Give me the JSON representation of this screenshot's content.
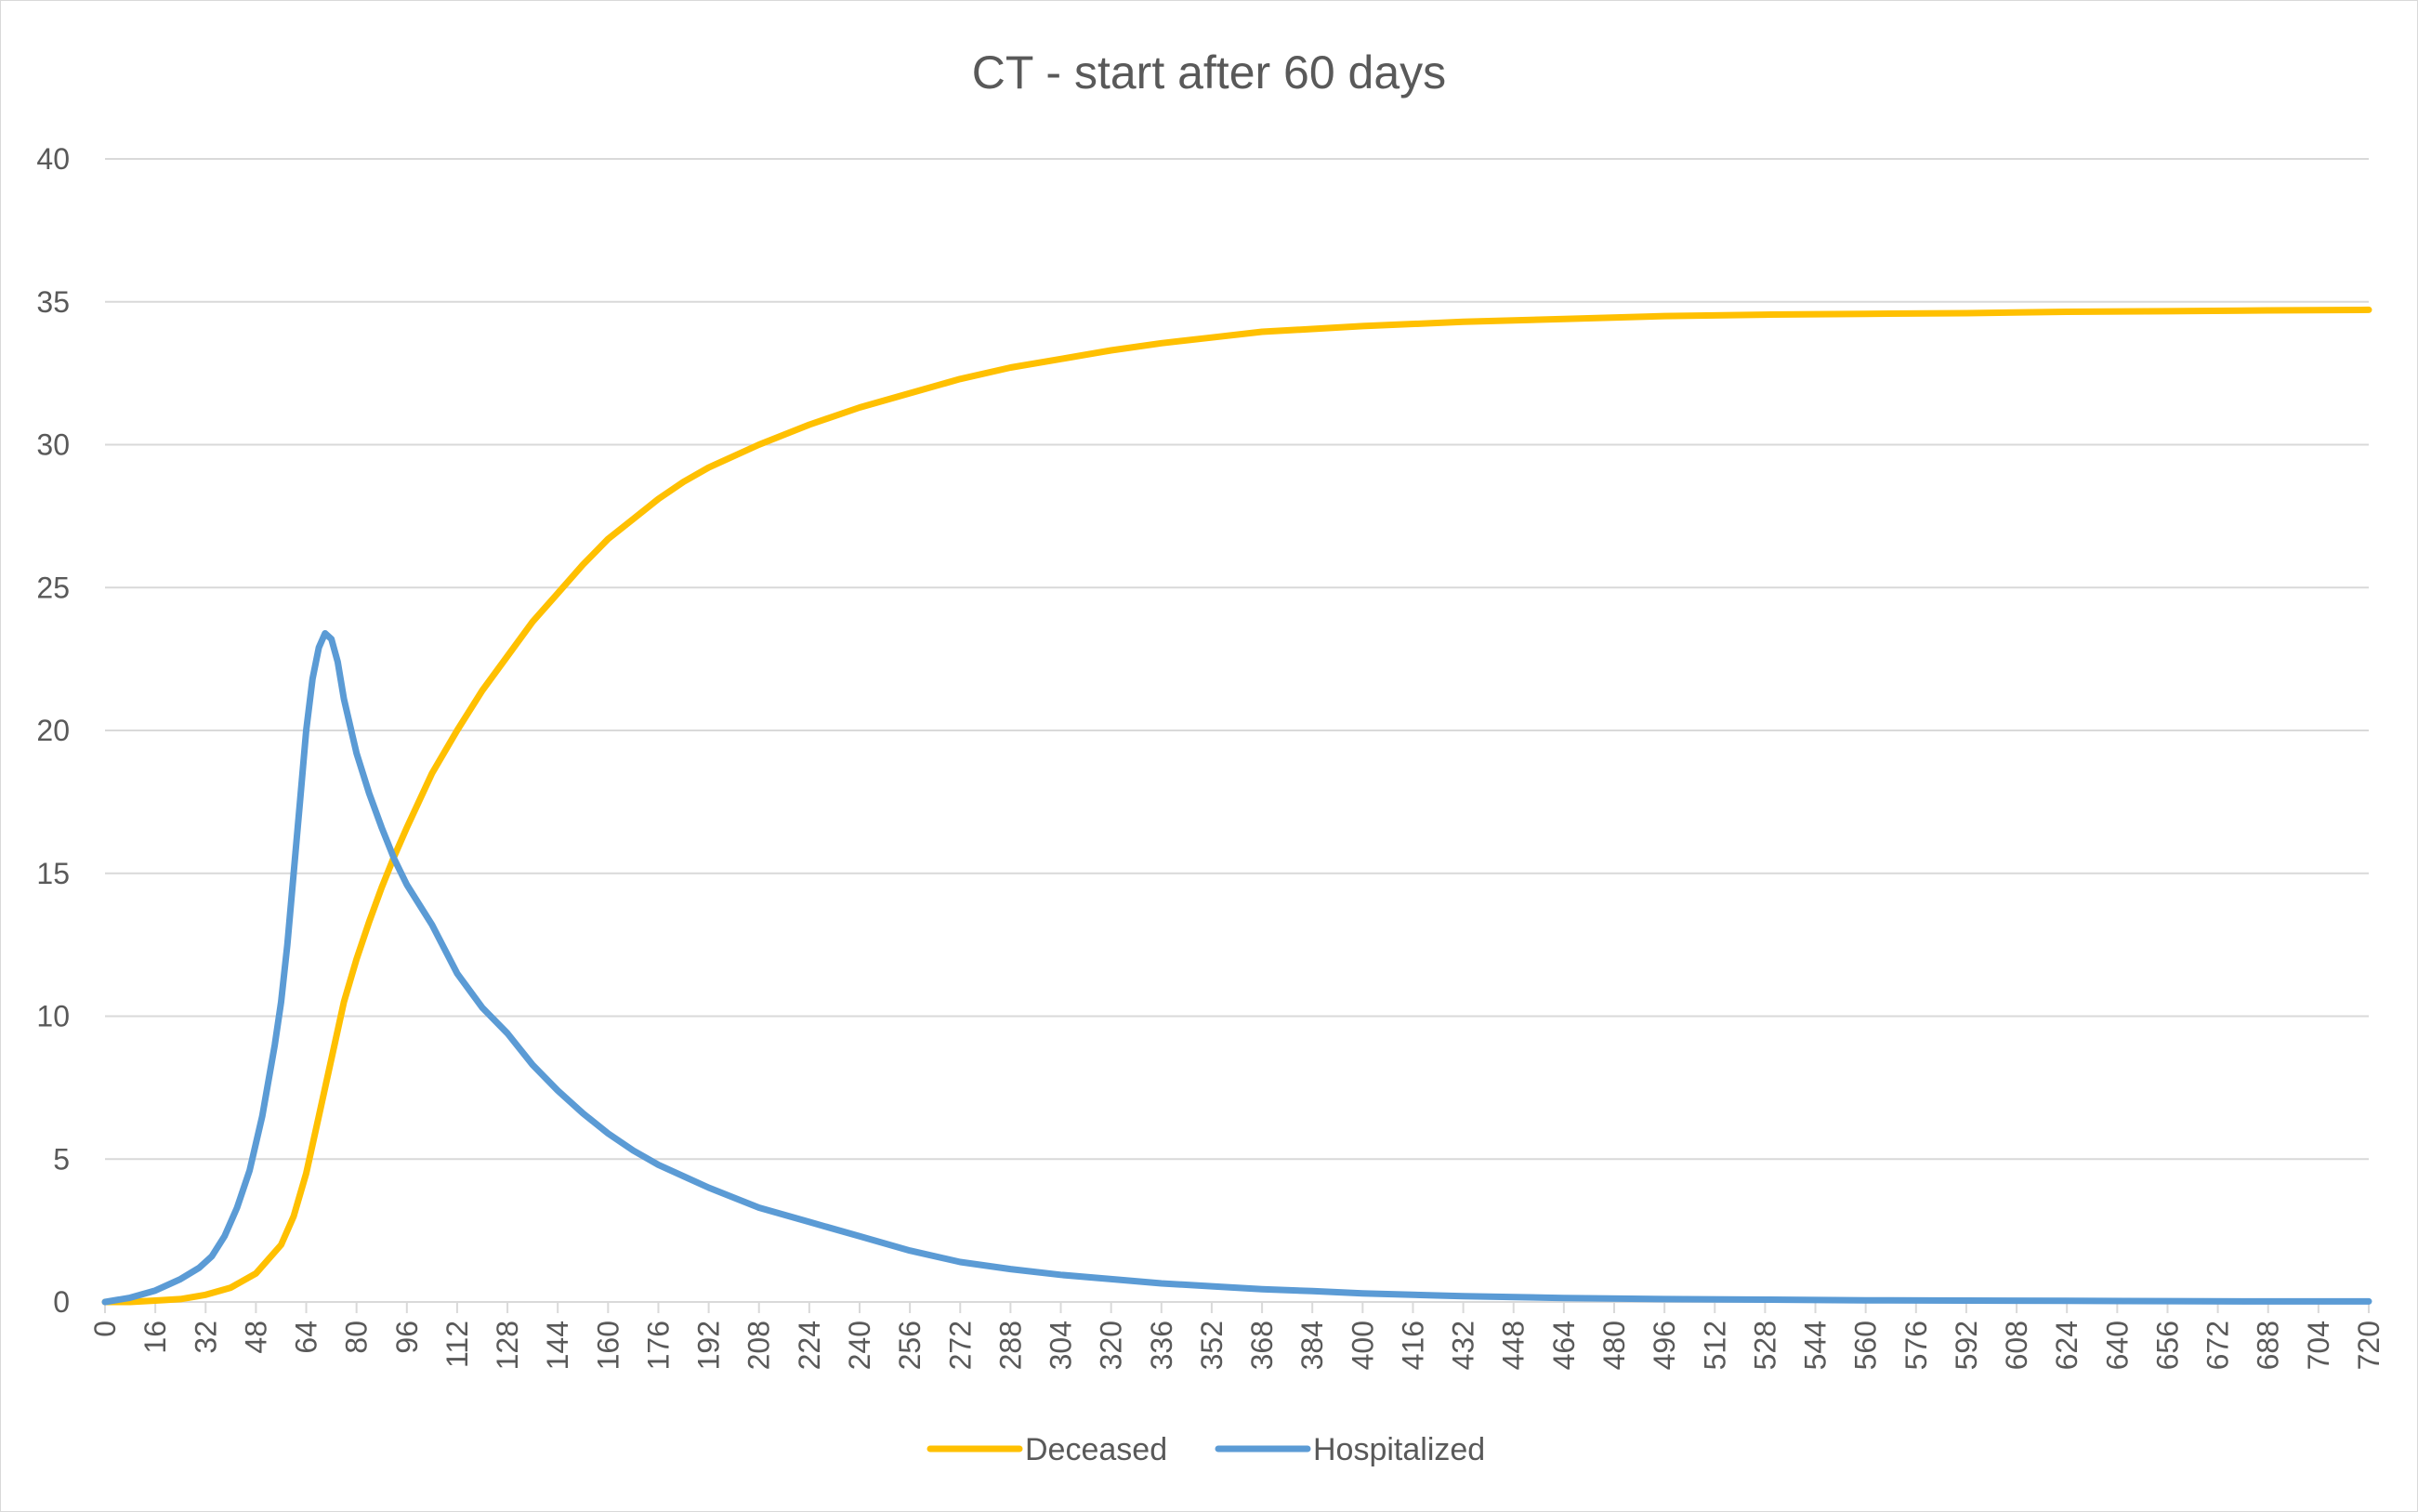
{
  "chart_data": {
    "type": "line",
    "title": "CT - start after 60 days",
    "xlabel": "",
    "ylabel": "",
    "xlim": [
      0,
      720
    ],
    "ylim": [
      0,
      40
    ],
    "y_ticks": [
      0,
      5,
      10,
      15,
      20,
      25,
      30,
      35,
      40
    ],
    "x_ticks": [
      0,
      16,
      32,
      48,
      64,
      80,
      96,
      112,
      128,
      144,
      160,
      176,
      192,
      208,
      224,
      240,
      256,
      272,
      288,
      304,
      320,
      336,
      352,
      368,
      384,
      400,
      416,
      432,
      448,
      464,
      480,
      496,
      512,
      528,
      544,
      560,
      576,
      592,
      608,
      624,
      640,
      656,
      672,
      688,
      704,
      720
    ],
    "grid": "horizontal",
    "legend_position": "bottom",
    "series": [
      {
        "name": "Deceased",
        "color": "#FFC000",
        "points": [
          [
            0,
            0
          ],
          [
            8,
            0
          ],
          [
            16,
            0.05
          ],
          [
            24,
            0.1
          ],
          [
            32,
            0.25
          ],
          [
            40,
            0.5
          ],
          [
            48,
            1.0
          ],
          [
            56,
            2.0
          ],
          [
            60,
            3.0
          ],
          [
            64,
            4.5
          ],
          [
            68,
            6.5
          ],
          [
            72,
            8.5
          ],
          [
            76,
            10.5
          ],
          [
            80,
            12.0
          ],
          [
            84,
            13.3
          ],
          [
            88,
            14.5
          ],
          [
            92,
            15.6
          ],
          [
            96,
            16.6
          ],
          [
            104,
            18.5
          ],
          [
            112,
            20.0
          ],
          [
            120,
            21.4
          ],
          [
            128,
            22.6
          ],
          [
            136,
            23.8
          ],
          [
            144,
            24.8
          ],
          [
            152,
            25.8
          ],
          [
            160,
            26.7
          ],
          [
            168,
            27.4
          ],
          [
            176,
            28.1
          ],
          [
            184,
            28.7
          ],
          [
            192,
            29.2
          ],
          [
            208,
            30.0
          ],
          [
            224,
            30.7
          ],
          [
            240,
            31.3
          ],
          [
            256,
            31.8
          ],
          [
            272,
            32.3
          ],
          [
            288,
            32.7
          ],
          [
            304,
            33.0
          ],
          [
            320,
            33.3
          ],
          [
            336,
            33.55
          ],
          [
            352,
            33.75
          ],
          [
            368,
            33.95
          ],
          [
            384,
            34.05
          ],
          [
            400,
            34.15
          ],
          [
            432,
            34.3
          ],
          [
            464,
            34.4
          ],
          [
            496,
            34.5
          ],
          [
            528,
            34.55
          ],
          [
            560,
            34.58
          ],
          [
            592,
            34.6
          ],
          [
            624,
            34.65
          ],
          [
            656,
            34.67
          ],
          [
            688,
            34.7
          ],
          [
            720,
            34.72
          ]
        ]
      },
      {
        "name": "Hospitalized",
        "color": "#5B9BD5",
        "points": [
          [
            0,
            0
          ],
          [
            8,
            0.15
          ],
          [
            16,
            0.4
          ],
          [
            24,
            0.8
          ],
          [
            30,
            1.2
          ],
          [
            34,
            1.6
          ],
          [
            38,
            2.3
          ],
          [
            42,
            3.3
          ],
          [
            46,
            4.6
          ],
          [
            50,
            6.5
          ],
          [
            54,
            9.0
          ],
          [
            56,
            10.5
          ],
          [
            58,
            12.5
          ],
          [
            60,
            15.0
          ],
          [
            62,
            17.5
          ],
          [
            64,
            20.0
          ],
          [
            66,
            21.8
          ],
          [
            68,
            22.9
          ],
          [
            70,
            23.4
          ],
          [
            72,
            23.2
          ],
          [
            74,
            22.4
          ],
          [
            76,
            21.1
          ],
          [
            80,
            19.2
          ],
          [
            84,
            17.8
          ],
          [
            88,
            16.6
          ],
          [
            92,
            15.5
          ],
          [
            96,
            14.6
          ],
          [
            104,
            13.2
          ],
          [
            112,
            11.5
          ],
          [
            120,
            10.3
          ],
          [
            128,
            9.4
          ],
          [
            136,
            8.3
          ],
          [
            144,
            7.4
          ],
          [
            152,
            6.6
          ],
          [
            160,
            5.9
          ],
          [
            168,
            5.3
          ],
          [
            176,
            4.8
          ],
          [
            184,
            4.4
          ],
          [
            192,
            4.0
          ],
          [
            208,
            3.3
          ],
          [
            224,
            2.8
          ],
          [
            240,
            2.3
          ],
          [
            256,
            1.8
          ],
          [
            272,
            1.4
          ],
          [
            288,
            1.15
          ],
          [
            304,
            0.95
          ],
          [
            320,
            0.8
          ],
          [
            336,
            0.65
          ],
          [
            352,
            0.55
          ],
          [
            368,
            0.45
          ],
          [
            384,
            0.38
          ],
          [
            400,
            0.3
          ],
          [
            432,
            0.2
          ],
          [
            464,
            0.14
          ],
          [
            496,
            0.1
          ],
          [
            528,
            0.08
          ],
          [
            560,
            0.06
          ],
          [
            592,
            0.05
          ],
          [
            624,
            0.04
          ],
          [
            656,
            0.03
          ],
          [
            688,
            0.02
          ],
          [
            720,
            0.02
          ]
        ]
      }
    ]
  }
}
